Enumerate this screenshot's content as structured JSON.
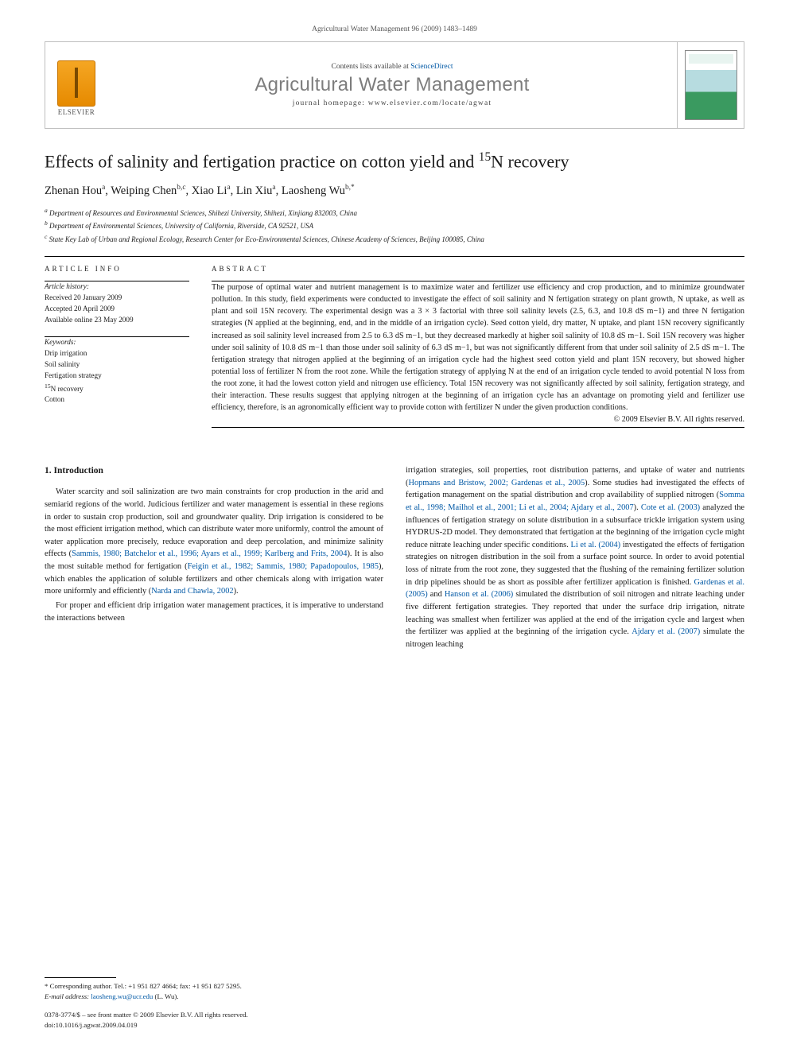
{
  "running_head": "Agricultural Water Management 96 (2009) 1483–1489",
  "header": {
    "contents_prefix": "Contents lists available at ",
    "contents_link": "ScienceDirect",
    "journal_name": "Agricultural Water Management",
    "homepage_prefix": "journal homepage: ",
    "homepage_url": "www.elsevier.com/locate/agwat",
    "publisher_word": "ELSEVIER",
    "cover_caption": "Agricultural Water Management"
  },
  "article": {
    "title_pre": "Effects of salinity and fertigation practice on cotton yield and ",
    "title_iso": "15",
    "title_post": "N recovery",
    "authors_html": "Zhenan Hou",
    "authors": [
      {
        "name": "Zhenan Hou",
        "aff": "a"
      },
      {
        "name": "Weiping Chen",
        "aff": "b,c"
      },
      {
        "name": "Xiao Li",
        "aff": "a"
      },
      {
        "name": "Lin Xiu",
        "aff": "a"
      },
      {
        "name": "Laosheng Wu",
        "aff": "b,*"
      }
    ],
    "affiliations": [
      {
        "key": "a",
        "text": "Department of Resources and Environmental Sciences, Shihezi University, Shihezi, Xinjiang 832003, China"
      },
      {
        "key": "b",
        "text": "Department of Environmental Sciences, University of California, Riverside, CA 92521, USA"
      },
      {
        "key": "c",
        "text": "State Key Lab of Urban and Regional Ecology, Research Center for Eco-Environmental Sciences, Chinese Academy of Sciences, Beijing 100085, China"
      }
    ]
  },
  "info": {
    "section_head": "ARTICLE INFO",
    "history_label": "Article history:",
    "history_lines": [
      "Received 20 January 2009",
      "Accepted 20 April 2009",
      "Available online 23 May 2009"
    ],
    "keywords_label": "Keywords:",
    "keywords": [
      "Drip irrigation",
      "Soil salinity",
      "Fertigation strategy",
      "15N recovery",
      "Cotton"
    ]
  },
  "abstract": {
    "section_head": "ABSTRACT",
    "text": "The purpose of optimal water and nutrient management is to maximize water and fertilizer use efficiency and crop production, and to minimize groundwater pollution. In this study, field experiments were conducted to investigate the effect of soil salinity and N fertigation strategy on plant growth, N uptake, as well as plant and soil 15N recovery. The experimental design was a 3 × 3 factorial with three soil salinity levels (2.5, 6.3, and 10.8 dS m−1) and three N fertigation strategies (N applied at the beginning, end, and in the middle of an irrigation cycle). Seed cotton yield, dry matter, N uptake, and plant 15N recovery significantly increased as soil salinity level increased from 2.5 to 6.3 dS m−1, but they decreased markedly at higher soil salinity of 10.8 dS m−1. Soil 15N recovery was higher under soil salinity of 10.8 dS m−1 than those under soil salinity of 6.3 dS m−1, but was not significantly different from that under soil salinity of 2.5 dS m−1. The fertigation strategy that nitrogen applied at the beginning of an irrigation cycle had the highest seed cotton yield and plant 15N recovery, but showed higher potential loss of fertilizer N from the root zone. While the fertigation strategy of applying N at the end of an irrigation cycle tended to avoid potential N loss from the root zone, it had the lowest cotton yield and nitrogen use efficiency. Total 15N recovery was not significantly affected by soil salinity, fertigation strategy, and their interaction. These results suggest that applying nitrogen at the beginning of an irrigation cycle has an advantage on promoting yield and fertilizer use efficiency, therefore, is an agronomically efficient way to provide cotton with fertilizer N under the given production conditions.",
    "copyright": "© 2009 Elsevier B.V. All rights reserved."
  },
  "intro": {
    "heading": "1. Introduction",
    "p1_a": "Water scarcity and soil salinization are two main constraints for crop production in the arid and semiarid regions of the world. Judicious fertilizer and water management is essential in these regions in order to sustain crop production, soil and groundwater quality. Drip irrigation is considered to be the most efficient irrigation method, which can distribute water more uniformly, control the amount of water application more precisely, reduce evaporation and deep percolation, and minimize salinity effects (",
    "p1_ref1": "Sammis, 1980; Batchelor et al., 1996; Ayars et al., 1999; Karlberg and Frits, 2004",
    "p1_b": "). It is also the most suitable method for fertigation (",
    "p1_ref2": "Feigin et al., 1982; Sammis, 1980; Papadopoulos, 1985",
    "p1_c": "), which enables the application of soluble fertilizers and other chemicals along with irrigation water more uniformly and efficiently (",
    "p1_ref3": "Narda and Chawla, 2002",
    "p1_d": ").",
    "p2": "For proper and efficient drip irrigation water management practices, it is imperative to understand the interactions between",
    "col2_a": "irrigation strategies, soil properties, root distribution patterns, and uptake of water and nutrients (",
    "col2_ref1": "Hopmans and Bristow, 2002; Gardenas et al., 2005",
    "col2_b": "). Some studies had investigated the effects of fertigation management on the spatial distribution and crop availability of supplied nitrogen (",
    "col2_ref2": "Somma et al., 1998; Mailhol et al., 2001; Li et al., 2004; Ajdary et al., 2007",
    "col2_c": "). ",
    "col2_ref3": "Cote et al. (2003)",
    "col2_d": " analyzed the influences of fertigation strategy on solute distribution in a subsurface trickle irrigation system using HYDRUS-2D model. They demonstrated that fertigation at the beginning of the irrigation cycle might reduce nitrate leaching under specific conditions. ",
    "col2_ref4": "Li et al. (2004)",
    "col2_e": " investigated the effects of fertigation strategies on nitrogen distribution in the soil from a surface point source. In order to avoid potential loss of nitrate from the root zone, they suggested that the flushing of the remaining fertilizer solution in drip pipelines should be as short as possible after fertilizer application is finished. ",
    "col2_ref5": "Gardenas et al. (2005)",
    "col2_f": " and ",
    "col2_ref6": "Hanson et al. (2006)",
    "col2_g": " simulated the distribution of soil nitrogen and nitrate leaching under five different fertigation strategies. They reported that under the surface drip irrigation, nitrate leaching was smallest when fertilizer was applied at the end of the irrigation cycle and largest when the fertilizer was applied at the beginning of the irrigation cycle. ",
    "col2_ref7": "Ajdary et al. (2007)",
    "col2_h": " simulate the nitrogen leaching"
  },
  "corresponding": {
    "star_label": "* Corresponding author. Tel.: +1 951 827 4664; fax: +1 951 827 5295.",
    "email_label": "E-mail address:",
    "email_value": "laosheng.wu@ucr.edu",
    "email_who": "(L. Wu)."
  },
  "footer": {
    "line1": "0378-3774/$ – see front matter © 2009 Elsevier B.V. All rights reserved.",
    "line2": "doi:10.1016/j.agwat.2009.04.019"
  },
  "colors": {
    "link": "#0058a5",
    "journal_grey": "#7d7d7d",
    "border": "#bfbfbf"
  }
}
